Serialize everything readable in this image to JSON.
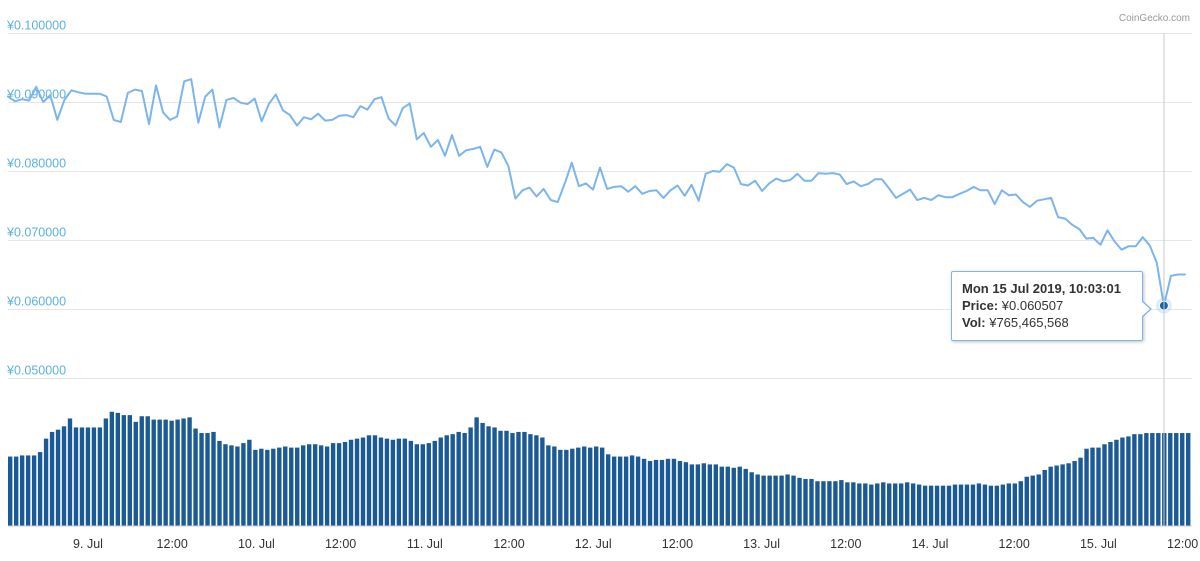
{
  "credit": "CoinGecko.com",
  "tooltip": {
    "date": "Mon 15 Jul 2019, 10:03:01",
    "price_label": "Price:",
    "price_value": "¥0.060507",
    "vol_label": "Vol:",
    "vol_value": "¥765,465,568"
  },
  "colors": {
    "price_line": "#7cb5ec",
    "volume_bar": "#1a5a96",
    "axis_label": "#5bb1e0",
    "gridline": "#e6e6e6",
    "marker": "#1565a8"
  },
  "chart_data": [
    {
      "type": "line",
      "title": "",
      "xlabel": "",
      "ylabel": "",
      "y_tick_labels": [
        "¥0.100000",
        "¥0.090000",
        "¥0.080000",
        "¥0.070000",
        "¥0.060000",
        "¥0.050000"
      ],
      "ylim": [
        0.05,
        0.1
      ],
      "grid": true,
      "series": [
        {
          "values": [
            0.0908,
            0.0901,
            0.0904,
            0.0902,
            0.0922,
            0.09,
            0.091,
            0.0874,
            0.0903,
            0.0917,
            0.0914,
            0.0912,
            0.0912,
            0.0912,
            0.0908,
            0.0874,
            0.0871,
            0.0913,
            0.0918,
            0.0916,
            0.0868,
            0.0924,
            0.0885,
            0.0874,
            0.0879,
            0.093,
            0.0933,
            0.087,
            0.0908,
            0.0918,
            0.0863,
            0.0903,
            0.0906,
            0.0899,
            0.0897,
            0.0905,
            0.0872,
            0.0897,
            0.0911,
            0.0888,
            0.0881,
            0.0866,
            0.0878,
            0.0875,
            0.0883,
            0.0873,
            0.0874,
            0.088,
            0.0881,
            0.0878,
            0.0894,
            0.0889,
            0.0904,
            0.0907,
            0.0876,
            0.0866,
            0.0891,
            0.0898,
            0.0846,
            0.0855,
            0.0835,
            0.0845,
            0.0822,
            0.0852,
            0.0822,
            0.083,
            0.0832,
            0.0835,
            0.0806,
            0.0831,
            0.0827,
            0.0807,
            0.076,
            0.0772,
            0.0776,
            0.0763,
            0.0774,
            0.0758,
            0.0755,
            0.0782,
            0.0812,
            0.0778,
            0.0782,
            0.0773,
            0.0805,
            0.0774,
            0.0777,
            0.0778,
            0.077,
            0.0778,
            0.0767,
            0.0771,
            0.0772,
            0.0761,
            0.0772,
            0.0779,
            0.0764,
            0.078,
            0.0757,
            0.0796,
            0.08,
            0.0799,
            0.081,
            0.0805,
            0.0781,
            0.0779,
            0.0786,
            0.0771,
            0.0782,
            0.0789,
            0.0785,
            0.0787,
            0.0796,
            0.0786,
            0.0786,
            0.0797,
            0.0796,
            0.0797,
            0.0795,
            0.0781,
            0.0785,
            0.0778,
            0.0781,
            0.0788,
            0.0788,
            0.0775,
            0.0761,
            0.0767,
            0.0773,
            0.0758,
            0.0761,
            0.0758,
            0.0765,
            0.0762,
            0.0762,
            0.0767,
            0.0771,
            0.0777,
            0.0772,
            0.0772,
            0.0752,
            0.0772,
            0.0765,
            0.0766,
            0.0755,
            0.0748,
            0.0757,
            0.0759,
            0.0761,
            0.0733,
            0.0731,
            0.0722,
            0.0716,
            0.0702,
            0.0703,
            0.0693,
            0.0714,
            0.0698,
            0.0686,
            0.0691,
            0.0691,
            0.0704,
            0.0692,
            0.0667,
            0.0605,
            0.0648,
            0.065,
            0.065
          ]
        }
      ]
    },
    {
      "type": "bar",
      "title": "",
      "xlabel": "",
      "ylabel": "",
      "x_tick_labels": [
        "9. Jul",
        "12:00",
        "10. Jul",
        "12:00",
        "11. Jul",
        "12:00",
        "12. Jul",
        "12:00",
        "13. Jul",
        "12:00",
        "14. Jul",
        "12:00",
        "15. Jul",
        "12:00"
      ],
      "series": [
        {
          "values": [
            62,
            62,
            63,
            63,
            63,
            66,
            78,
            84,
            86,
            89,
            96,
            88,
            88,
            88,
            88,
            88,
            96,
            102,
            101,
            99,
            99,
            93,
            98,
            98,
            95,
            95,
            95,
            94,
            95,
            96,
            97,
            87,
            83,
            83,
            84,
            76,
            73,
            72,
            71,
            74,
            77,
            68,
            69,
            68,
            69,
            70,
            71,
            70,
            70,
            72,
            73,
            73,
            72,
            71,
            74,
            74,
            75,
            77,
            78,
            79,
            81,
            81,
            79,
            78,
            77,
            78,
            78,
            76,
            73,
            73,
            74,
            76,
            79,
            81,
            82,
            84,
            83,
            88,
            97,
            92,
            89,
            88,
            85,
            85,
            83,
            84,
            84,
            82,
            81,
            79,
            72,
            71,
            68,
            68,
            69,
            70,
            71,
            70,
            71,
            70,
            64,
            62,
            62,
            62,
            63,
            62,
            60,
            58,
            59,
            59,
            60,
            60,
            58,
            57,
            55,
            55,
            56,
            55,
            55,
            53,
            53,
            52,
            53,
            51,
            48,
            46,
            45,
            45,
            45,
            45,
            46,
            45,
            43,
            42,
            42,
            40,
            40,
            40,
            40,
            41,
            39,
            39,
            38,
            38,
            37,
            38,
            39,
            38,
            38,
            38,
            39,
            38,
            37,
            36,
            36,
            36,
            36,
            36,
            37,
            37,
            37,
            37,
            38,
            37,
            36,
            36,
            37,
            38,
            38,
            40,
            44,
            45,
            46,
            50,
            53,
            54,
            55,
            56,
            58,
            61,
            69,
            70,
            70,
            73,
            75,
            77,
            79,
            80,
            82,
            82,
            83,
            83,
            83,
            83,
            83,
            83,
            83,
            83
          ]
        }
      ]
    }
  ]
}
